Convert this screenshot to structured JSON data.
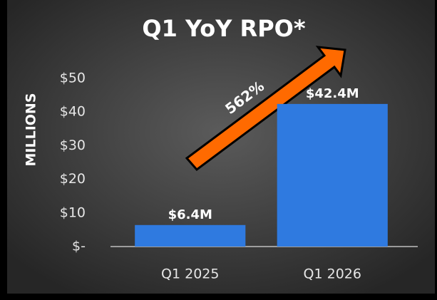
{
  "chart_data": {
    "type": "bar",
    "title": "Q1 YoY RPO*",
    "y_label": "MILLIONS",
    "categories": [
      "Q1 2025",
      "Q1 2026"
    ],
    "values": [
      6.4,
      42.4
    ],
    "value_labels": [
      "$6.4M",
      "$42.4M"
    ],
    "color": "#2f7ae0",
    "ylim": [
      0,
      50
    ],
    "yticks": [
      {
        "value": 0,
        "label": "$-"
      },
      {
        "value": 10,
        "label": "$10"
      },
      {
        "value": 20,
        "label": "$20"
      },
      {
        "value": 30,
        "label": "$30"
      },
      {
        "value": 40,
        "label": "$40"
      },
      {
        "value": 50,
        "label": "$50"
      }
    ],
    "grid": false,
    "annotation": "562%"
  }
}
